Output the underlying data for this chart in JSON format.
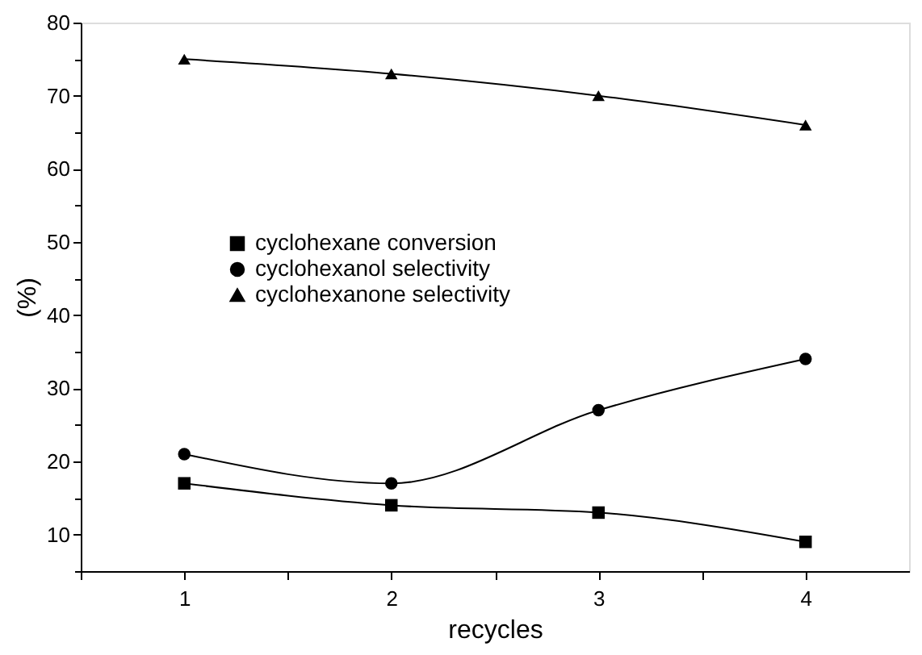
{
  "chart_data": {
    "type": "line",
    "xlabel": "recycles",
    "ylabel": "(%)",
    "x": [
      1,
      2,
      3,
      4
    ],
    "series": [
      {
        "name": "cyclohexane conversion",
        "color": "#000000",
        "marker": "square",
        "values": [
          17,
          14,
          13,
          9
        ]
      },
      {
        "name": "cyclohexanol selectivity",
        "color": "#000000",
        "marker": "circle",
        "values": [
          21,
          17,
          27,
          34
        ]
      },
      {
        "name": "cyclohexanone selectivity",
        "color": "#000000",
        "marker": "triangle",
        "values": [
          75,
          73,
          70,
          66
        ]
      }
    ],
    "xlim": [
      0.5,
      4.5
    ],
    "xticks": [
      {
        "value": 0.5,
        "label": null
      },
      1,
      {
        "value": 1.5,
        "label": null
      },
      2,
      {
        "value": 2.5,
        "label": null
      },
      3,
      {
        "value": 3.5,
        "label": null
      },
      4
    ],
    "ylim": [
      5,
      80
    ],
    "yticks": [
      {
        "value": 5,
        "label": null
      },
      10,
      {
        "value": 15,
        "label": null
      },
      20,
      {
        "value": 25,
        "label": null
      },
      30,
      {
        "value": 35,
        "label": null
      },
      40,
      {
        "value": 45,
        "label": null
      },
      50,
      {
        "value": 55,
        "label": null
      },
      60,
      {
        "value": 65,
        "label": null
      },
      70,
      {
        "value": 75,
        "label": null
      },
      80
    ],
    "grid": false,
    "legend": "left",
    "line_style": "solid"
  }
}
